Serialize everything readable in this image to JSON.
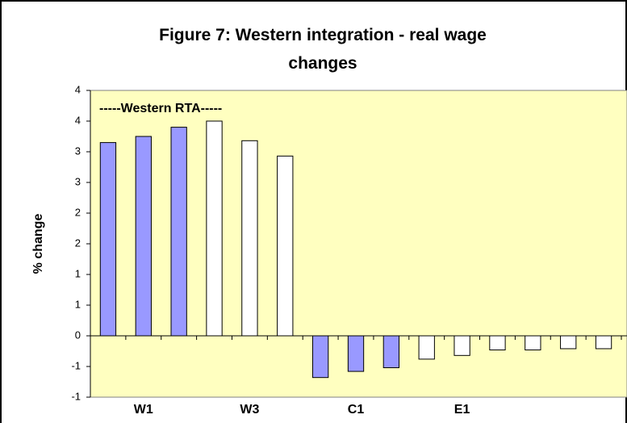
{
  "chart_data": {
    "type": "bar",
    "title": "Figure 7: Western integration - real wage changes",
    "ylabel": "% change",
    "annotation": "-----Western RTA-----",
    "categories": [
      null,
      "W1",
      null,
      null,
      "W3",
      null,
      null,
      "C1",
      null,
      null,
      "E1",
      null,
      null,
      null,
      null
    ],
    "values": [
      3.15,
      3.25,
      3.4,
      3.5,
      3.18,
      2.93,
      -0.68,
      -0.58,
      -0.52,
      -0.38,
      -0.32,
      -0.23,
      -0.23,
      -0.21,
      -0.21
    ],
    "colors": [
      "#9999ff",
      "#9999ff",
      "#9999ff",
      "#ffffff",
      "#ffffff",
      "#ffffff",
      "#9999ff",
      "#9999ff",
      "#9999ff",
      "#ffffff",
      "#ffffff",
      "#ffffff",
      "#ffffff",
      "#ffffff",
      "#ffffff"
    ],
    "ylim": [
      -1,
      4
    ],
    "yticks": [
      -1,
      {
        "value": -0.5,
        "label": "-1"
      },
      0,
      {
        "value": 0.5,
        "label": "1"
      },
      1,
      {
        "value": 1.5,
        "label": "2"
      },
      2,
      {
        "value": 2.5,
        "label": "3"
      },
      3,
      {
        "value": 3.5,
        "label": "4"
      },
      4
    ],
    "plot_background": "#ffffc0"
  }
}
